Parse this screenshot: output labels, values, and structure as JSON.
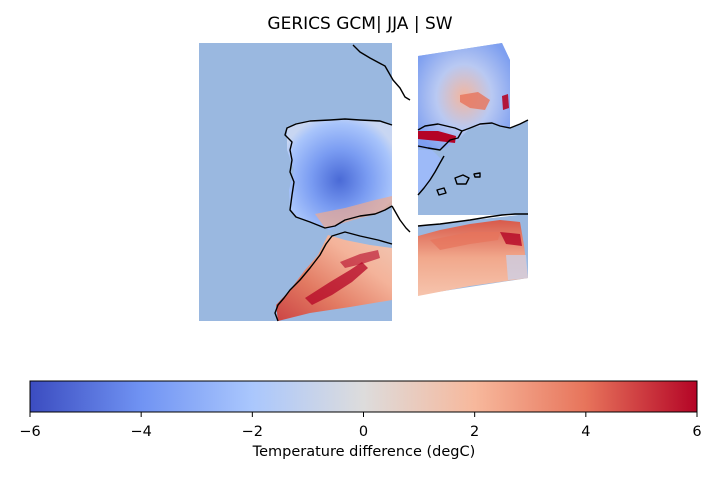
{
  "title": "GERICS GCM| JJA | SW",
  "colorbar": {
    "label": "Temperature difference (degC)",
    "ticks": [
      "−6",
      "−4",
      "−2",
      "0",
      "2",
      "4",
      "6"
    ],
    "min": -6,
    "max": 6,
    "colormap": "coolwarm",
    "colors": [
      "#3b4cc0",
      "#7093f3",
      "#aac7fd",
      "#dddcdc",
      "#f7b89c",
      "#e7745b",
      "#b40426"
    ]
  },
  "map": {
    "region": "Iberian Peninsula and North Africa",
    "ocean_color": "#9ab8e0",
    "coastline_color": "#000000"
  }
}
